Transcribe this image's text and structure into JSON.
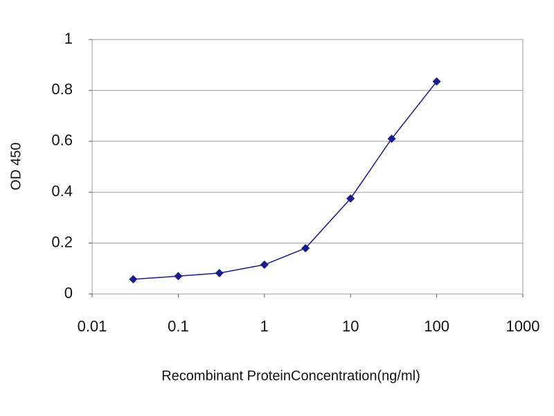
{
  "chart_data": {
    "type": "line",
    "x_label": "Recombinant ProteinConcentration(ng/ml)",
    "y_label": "OD 450",
    "x": [
      0.03,
      0.1,
      0.3,
      1,
      3,
      10,
      30,
      100
    ],
    "series": [
      {
        "color": "#1a1a8c",
        "values": [
          0.058,
          0.07,
          0.082,
          0.115,
          0.18,
          0.375,
          0.61,
          0.835
        ]
      }
    ],
    "xlog": true,
    "xlim": [
      0.01,
      1000
    ],
    "xticks": [
      0.01,
      0.1,
      1,
      10,
      100,
      1000
    ],
    "ylim": [
      0,
      1
    ],
    "yticks": [
      0,
      0.2,
      0.4,
      0.6,
      0.8,
      1
    ],
    "grid": true
  }
}
